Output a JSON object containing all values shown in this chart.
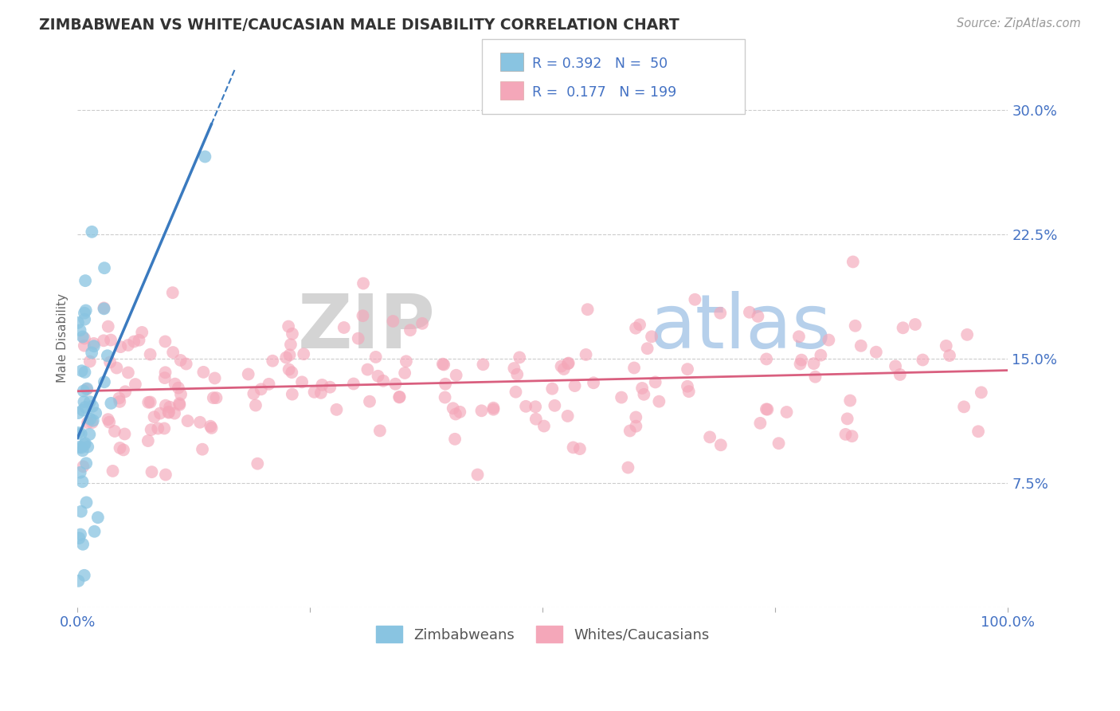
{
  "title": "ZIMBABWEAN VS WHITE/CAUCASIAN MALE DISABILITY CORRELATION CHART",
  "source": "Source: ZipAtlas.com",
  "ylabel": "Male Disability",
  "xlim": [
    0.0,
    1.0
  ],
  "ylim": [
    0.0,
    0.325
  ],
  "yticks": [
    0.0,
    0.075,
    0.15,
    0.225,
    0.3
  ],
  "ytick_labels": [
    "",
    "7.5%",
    "15.0%",
    "22.5%",
    "30.0%"
  ],
  "blue_R": 0.392,
  "blue_N": 50,
  "pink_R": 0.177,
  "pink_N": 199,
  "blue_color": "#89c4e1",
  "pink_color": "#f4a7b9",
  "blue_line_color": "#3a7abf",
  "pink_line_color": "#d95f7f",
  "title_color": "#333333",
  "axis_label_color": "#4472c4",
  "legend_text_color": "#4472c4",
  "background_color": "#ffffff",
  "grid_color": "#cccccc"
}
